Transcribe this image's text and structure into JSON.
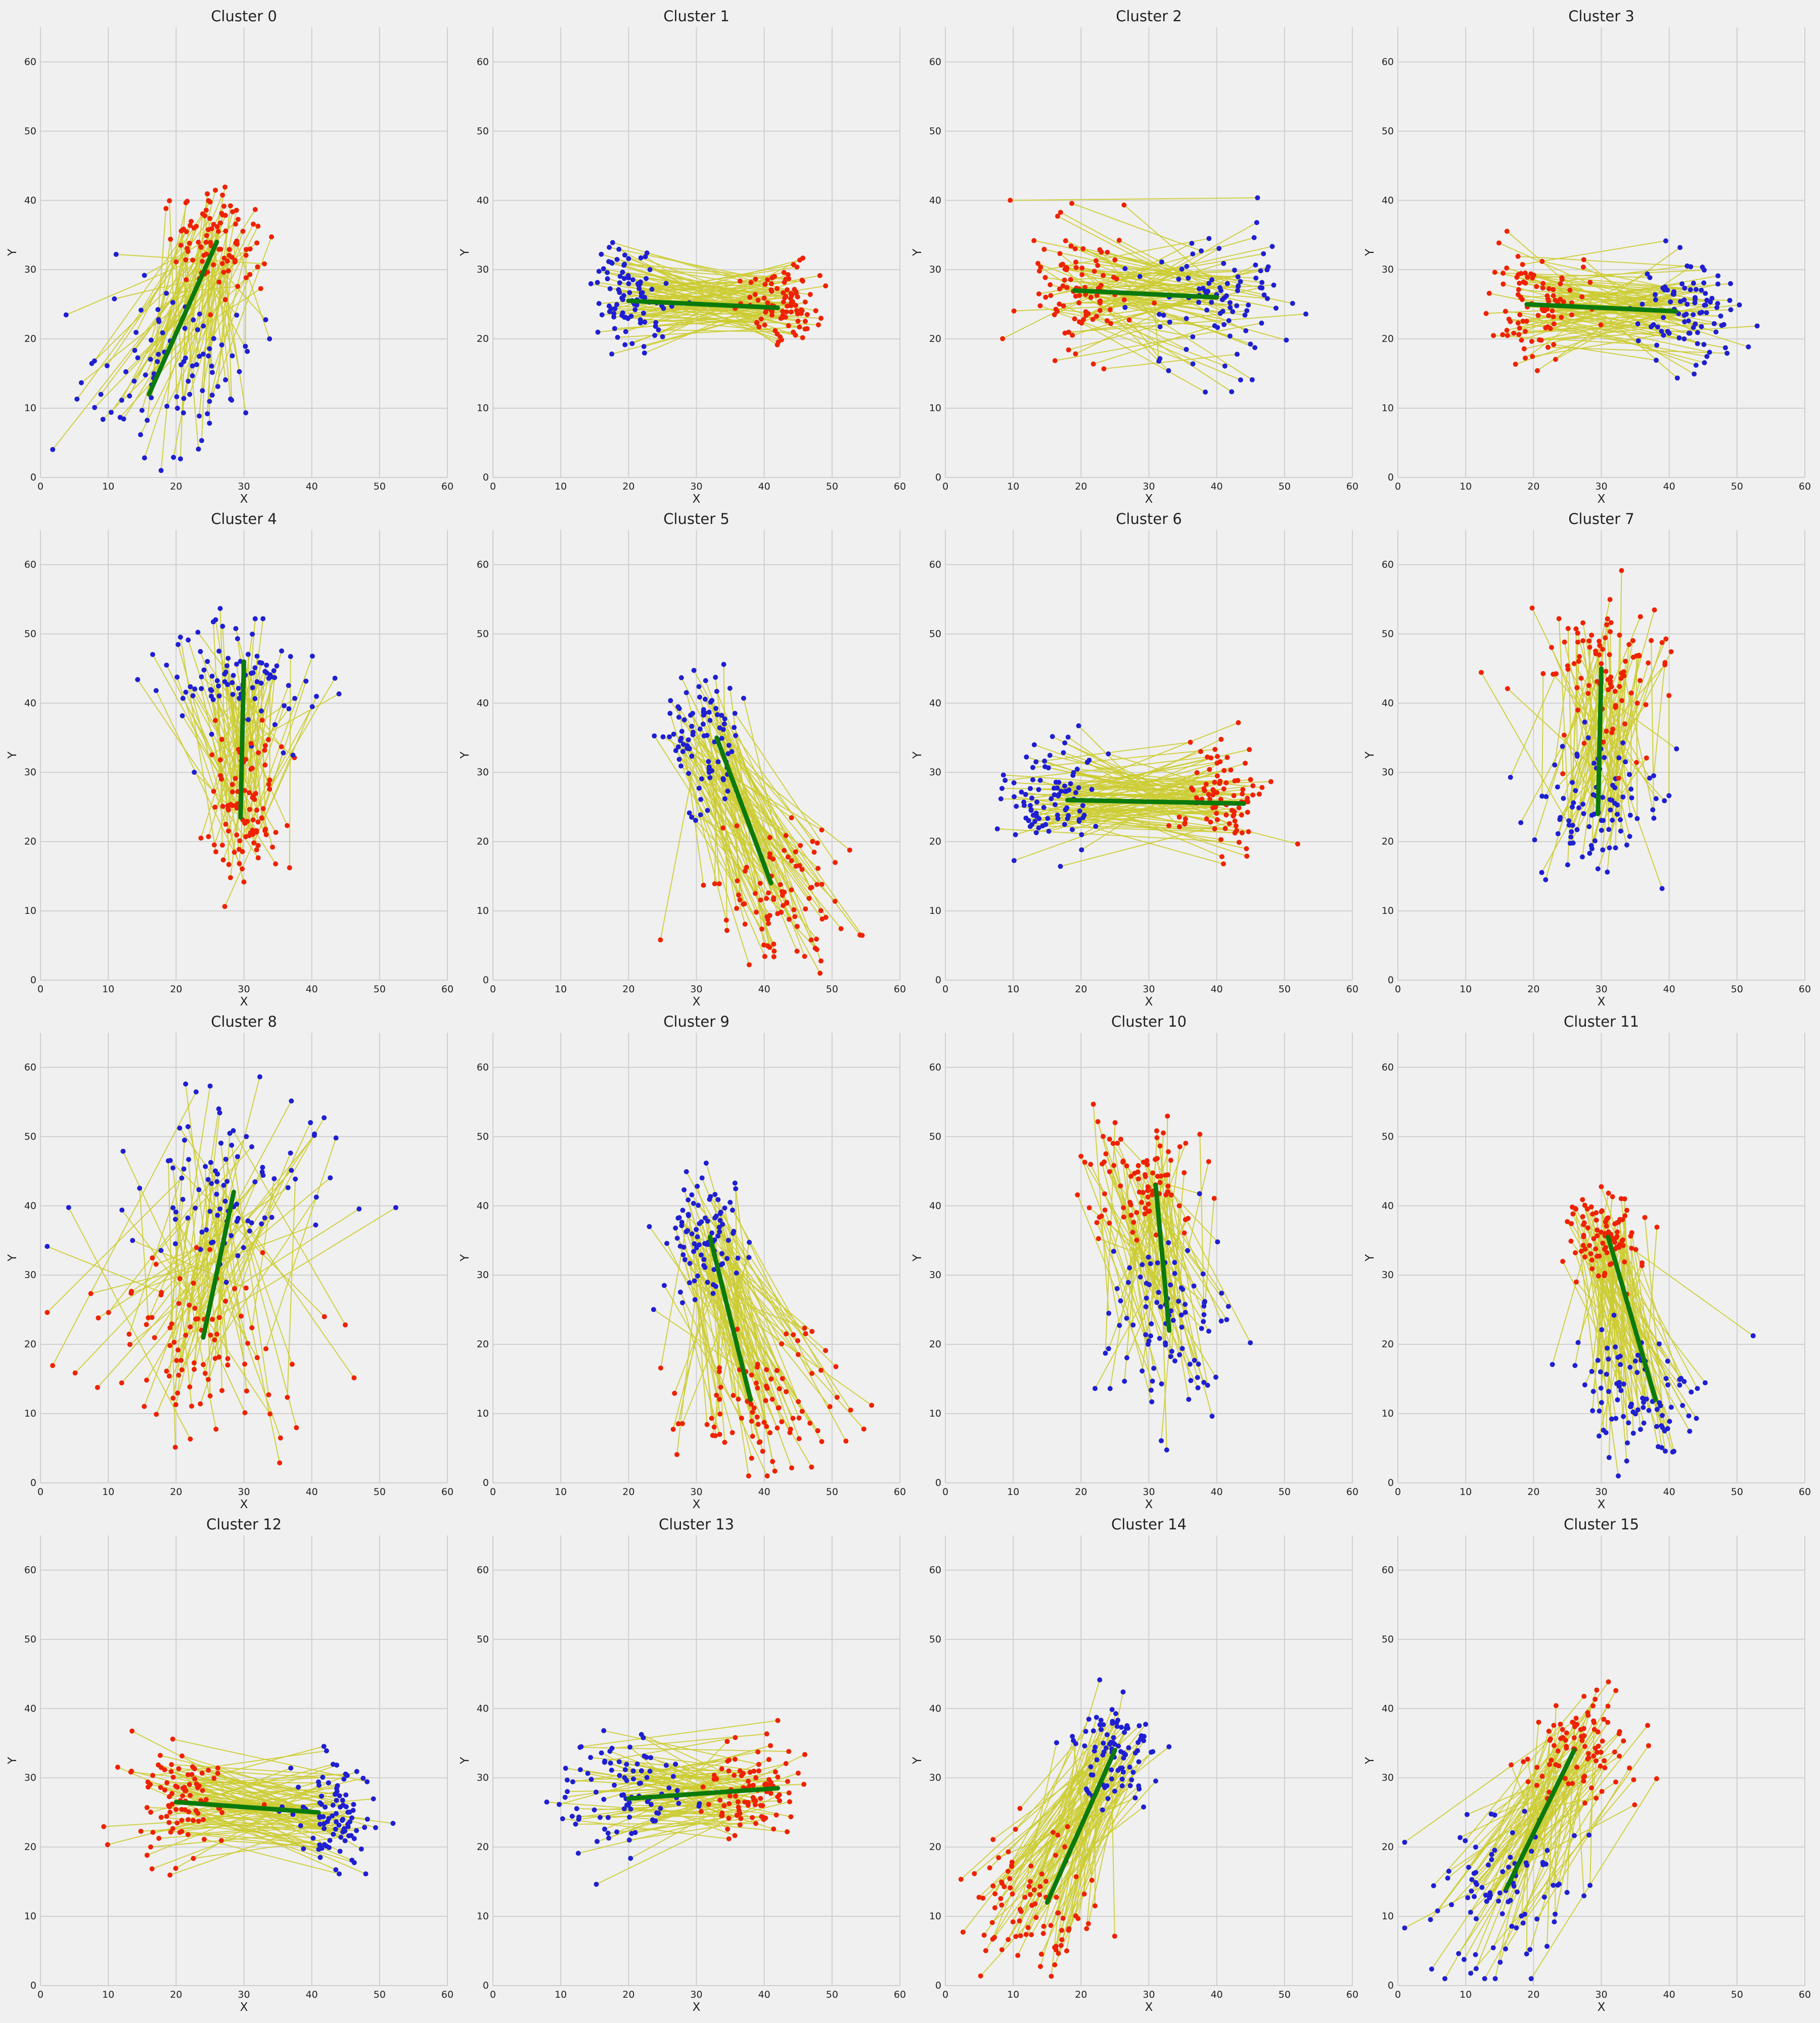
{
  "chart_data": {
    "type": "scatter",
    "layout": "4x4 grid of panels",
    "xlabel": "X",
    "ylabel": "Y",
    "xlim": [
      0,
      60
    ],
    "ylim": [
      0,
      65
    ],
    "xticks": [
      0,
      10,
      20,
      30,
      40,
      50,
      60
    ],
    "yticks": [
      0,
      10,
      20,
      30,
      40,
      50,
      60
    ],
    "grid": true,
    "legend": "none",
    "colors": {
      "origin_points": "#1f1fd2",
      "destination_points": "#ee2200",
      "connector_lines": "#cccc33",
      "mean_vector": "#0b7a0b",
      "background": "#f0f0f0",
      "grid": "#cfcfcf"
    },
    "panels": [
      {
        "title": "Cluster 0",
        "origin_center": [
          19,
          15
        ],
        "origin_spread": [
          7,
          6
        ],
        "dest_center": [
          26,
          34
        ],
        "dest_spread": [
          3,
          4
        ],
        "mean_start": [
          16,
          12
        ],
        "mean_end": [
          26,
          34
        ]
      },
      {
        "title": "Cluster 1",
        "origin_center": [
          20,
          26
        ],
        "origin_spread": [
          3,
          4
        ],
        "dest_center": [
          43,
          25
        ],
        "dest_spread": [
          3,
          3
        ],
        "mean_start": [
          20,
          25.5
        ],
        "mean_end": [
          42,
          24.5
        ]
      },
      {
        "title": "Cluster 2",
        "origin_center": [
          41,
          26
        ],
        "origin_spread": [
          5,
          5
        ],
        "dest_center": [
          20,
          27
        ],
        "dest_spread": [
          4,
          5
        ],
        "mean_start": [
          19,
          27
        ],
        "mean_end": [
          40,
          26
        ]
      },
      {
        "title": "Cluster 3",
        "origin_center": [
          43,
          24
        ],
        "origin_spread": [
          4,
          4
        ],
        "dest_center": [
          20,
          25
        ],
        "dest_spread": [
          4,
          4
        ],
        "mean_start": [
          19,
          25
        ],
        "mean_end": [
          41,
          24
        ]
      },
      {
        "title": "Cluster 4",
        "origin_center": [
          29,
          45
        ],
        "origin_spread": [
          6,
          5
        ],
        "dest_center": [
          30,
          24
        ],
        "dest_spread": [
          3,
          6
        ],
        "mean_start": [
          29.5,
          23.5
        ],
        "mean_end": [
          30,
          46
        ]
      },
      {
        "title": "Cluster 5",
        "origin_center": [
          31,
          35
        ],
        "origin_spread": [
          3,
          5
        ],
        "dest_center": [
          43,
          12
        ],
        "dest_spread": [
          5,
          6
        ],
        "mean_start": [
          33,
          35
        ],
        "mean_end": [
          41,
          14
        ]
      },
      {
        "title": "Cluster 6",
        "origin_center": [
          16,
          26
        ],
        "origin_spread": [
          4,
          4
        ],
        "dest_center": [
          41,
          26
        ],
        "dest_spread": [
          4,
          4
        ],
        "mean_start": [
          18,
          26
        ],
        "mean_end": [
          44,
          25.5
        ]
      },
      {
        "title": "Cluster 7",
        "origin_center": [
          30,
          24
        ],
        "origin_spread": [
          5,
          5
        ],
        "dest_center": [
          30,
          45
        ],
        "dest_spread": [
          5,
          5
        ],
        "mean_start": [
          29.5,
          24
        ],
        "mean_end": [
          30,
          45
        ]
      },
      {
        "title": "Cluster 8",
        "origin_center": [
          27,
          42
        ],
        "origin_spread": [
          8,
          7
        ],
        "dest_center": [
          22,
          20
        ],
        "dest_spread": [
          8,
          7
        ],
        "mean_start": [
          24,
          21
        ],
        "mean_end": [
          28.5,
          42
        ]
      },
      {
        "title": "Cluster 9",
        "origin_center": [
          31,
          35
        ],
        "origin_spread": [
          3,
          5
        ],
        "dest_center": [
          40,
          10
        ],
        "dest_spread": [
          6,
          5
        ],
        "mean_start": [
          32,
          35.5
        ],
        "mean_end": [
          38,
          12
        ]
      },
      {
        "title": "Cluster 10",
        "origin_center": [
          33,
          22
        ],
        "origin_spread": [
          5,
          7
        ],
        "dest_center": [
          29,
          44
        ],
        "dest_spread": [
          4,
          5
        ],
        "mean_start": [
          31,
          43
        ],
        "mean_end": [
          33,
          22
        ]
      },
      {
        "title": "Cluster 11",
        "origin_center": [
          35,
          13
        ],
        "origin_spread": [
          5,
          5
        ],
        "dest_center": [
          31,
          36
        ],
        "dest_spread": [
          3,
          3
        ],
        "mean_start": [
          31,
          35.5
        ],
        "mean_end": [
          38,
          12
        ]
      },
      {
        "title": "Cluster 12",
        "origin_center": [
          43,
          25
        ],
        "origin_spread": [
          3,
          4
        ],
        "dest_center": [
          20,
          27
        ],
        "dest_spread": [
          4,
          4
        ],
        "mean_start": [
          20,
          26.5
        ],
        "mean_end": [
          41,
          25
        ]
      },
      {
        "title": "Cluster 13",
        "origin_center": [
          19,
          28
        ],
        "origin_spread": [
          5,
          4
        ],
        "dest_center": [
          38,
          28
        ],
        "dest_spread": [
          4,
          4
        ],
        "mean_start": [
          20,
          27
        ],
        "mean_end": [
          42,
          28.5
        ]
      },
      {
        "title": "Cluster 14",
        "origin_center": [
          25,
          34
        ],
        "origin_spread": [
          3,
          4
        ],
        "dest_center": [
          13,
          12
        ],
        "dest_spread": [
          5,
          5
        ],
        "mean_start": [
          15,
          12
        ],
        "mean_end": [
          25,
          34
        ]
      },
      {
        "title": "Cluster 15",
        "origin_center": [
          15,
          13
        ],
        "origin_spread": [
          6,
          6
        ],
        "dest_center": [
          27,
          34
        ],
        "dest_spread": [
          4,
          4
        ],
        "mean_start": [
          16,
          14
        ],
        "mean_end": [
          26,
          34
        ]
      }
    ]
  }
}
